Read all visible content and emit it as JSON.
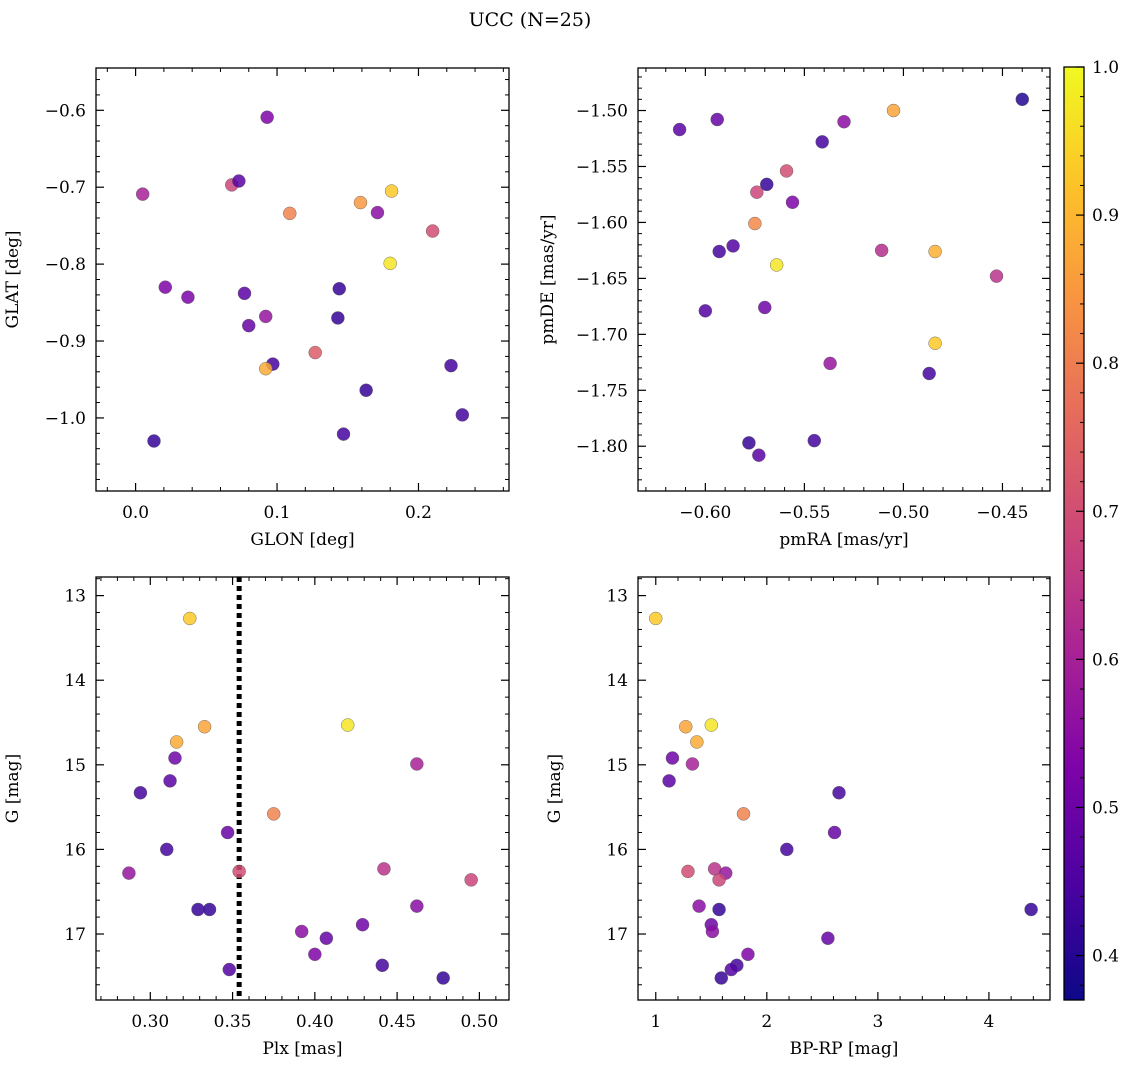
{
  "suptitle": "UCC (N=25)",
  "colorbar": {
    "colormap": "plasma",
    "min": 0.37,
    "max": 1.0,
    "ticks": [
      0.4,
      0.5,
      0.6,
      0.7,
      0.8,
      0.9,
      1.0
    ],
    "tick_labels": [
      "0.4",
      "0.5",
      "0.6",
      "0.7",
      "0.8",
      "0.9",
      "1.0"
    ]
  },
  "chart_data": [
    {
      "type": "scatter",
      "id": "glon-glat",
      "xlabel": "GLON [deg]",
      "ylabel": "GLAT [deg]",
      "xlim": [
        -0.028,
        0.264
      ],
      "ylim": [
        -1.095,
        -0.545
      ],
      "xticks": [
        0.0,
        0.1,
        0.2
      ],
      "xtick_labels": [
        "0.0",
        "0.1",
        "0.2"
      ],
      "yticks": [
        -0.6,
        -0.7,
        -0.8,
        -0.9,
        -1.0
      ],
      "ytick_labels": [
        "−0.6",
        "−0.7",
        "−0.8",
        "−0.9",
        "−1.0"
      ],
      "y_inverted": false,
      "points": [
        {
          "x": 0.005,
          "y": -0.709,
          "c": 0.6
        },
        {
          "x": 0.013,
          "y": -1.03,
          "c": 0.42
        },
        {
          "x": 0.021,
          "y": -0.83,
          "c": 0.53
        },
        {
          "x": 0.037,
          "y": -0.843,
          "c": 0.52
        },
        {
          "x": 0.068,
          "y": -0.697,
          "c": 0.68
        },
        {
          "x": 0.073,
          "y": -0.692,
          "c": 0.47
        },
        {
          "x": 0.077,
          "y": -0.838,
          "c": 0.47
        },
        {
          "x": 0.08,
          "y": -0.88,
          "c": 0.49
        },
        {
          "x": 0.093,
          "y": -0.609,
          "c": 0.53
        },
        {
          "x": 0.092,
          "y": -0.868,
          "c": 0.57
        },
        {
          "x": 0.097,
          "y": -0.93,
          "c": 0.44
        },
        {
          "x": 0.092,
          "y": -0.936,
          "c": 0.88
        },
        {
          "x": 0.109,
          "y": -0.734,
          "c": 0.81
        },
        {
          "x": 0.127,
          "y": -0.915,
          "c": 0.73
        },
        {
          "x": 0.143,
          "y": -0.87,
          "c": 0.42
        },
        {
          "x": 0.144,
          "y": -0.832,
          "c": 0.42
        },
        {
          "x": 0.147,
          "y": -1.021,
          "c": 0.44
        },
        {
          "x": 0.159,
          "y": -0.72,
          "c": 0.85
        },
        {
          "x": 0.163,
          "y": -0.964,
          "c": 0.42
        },
        {
          "x": 0.171,
          "y": -0.733,
          "c": 0.55
        },
        {
          "x": 0.181,
          "y": -0.705,
          "c": 0.93
        },
        {
          "x": 0.18,
          "y": -0.799,
          "c": 0.97
        },
        {
          "x": 0.21,
          "y": -0.757,
          "c": 0.7
        },
        {
          "x": 0.223,
          "y": -0.932,
          "c": 0.44
        },
        {
          "x": 0.231,
          "y": -0.996,
          "c": 0.44
        }
      ]
    },
    {
      "type": "scatter",
      "id": "pmra-pmde",
      "xlabel": "pmRA [mas/yr]",
      "ylabel": "pmDE [mas/yr]",
      "xlim": [
        -0.634,
        -0.426
      ],
      "ylim": [
        -1.84,
        -1.462
      ],
      "xticks": [
        -0.6,
        -0.55,
        -0.5,
        -0.45
      ],
      "xtick_labels": [
        "−0.60",
        "−0.55",
        "−0.50",
        "−0.45"
      ],
      "yticks": [
        -1.5,
        -1.55,
        -1.6,
        -1.65,
        -1.7,
        -1.75,
        -1.8
      ],
      "ytick_labels": [
        "−1.50",
        "−1.55",
        "−1.60",
        "−1.65",
        "−1.70",
        "−1.75",
        "−1.80"
      ],
      "y_inverted": false,
      "points": [
        {
          "x": -0.613,
          "y": -1.517,
          "c": 0.47
        },
        {
          "x": -0.594,
          "y": -1.508,
          "c": 0.49
        },
        {
          "x": -0.6,
          "y": -1.679,
          "c": 0.46
        },
        {
          "x": -0.593,
          "y": -1.626,
          "c": 0.44
        },
        {
          "x": -0.586,
          "y": -1.621,
          "c": 0.46
        },
        {
          "x": -0.578,
          "y": -1.797,
          "c": 0.42
        },
        {
          "x": -0.575,
          "y": -1.601,
          "c": 0.82
        },
        {
          "x": -0.574,
          "y": -1.573,
          "c": 0.68
        },
        {
          "x": -0.573,
          "y": -1.808,
          "c": 0.47
        },
        {
          "x": -0.569,
          "y": -1.566,
          "c": 0.42
        },
        {
          "x": -0.57,
          "y": -1.676,
          "c": 0.5
        },
        {
          "x": -0.564,
          "y": -1.638,
          "c": 0.97
        },
        {
          "x": -0.559,
          "y": -1.554,
          "c": 0.7
        },
        {
          "x": -0.556,
          "y": -1.582,
          "c": 0.53
        },
        {
          "x": -0.545,
          "y": -1.795,
          "c": 0.44
        },
        {
          "x": -0.541,
          "y": -1.528,
          "c": 0.44
        },
        {
          "x": -0.537,
          "y": -1.726,
          "c": 0.57
        },
        {
          "x": -0.53,
          "y": -1.51,
          "c": 0.55
        },
        {
          "x": -0.511,
          "y": -1.625,
          "c": 0.63
        },
        {
          "x": -0.505,
          "y": -1.5,
          "c": 0.87
        },
        {
          "x": -0.487,
          "y": -1.735,
          "c": 0.44
        },
        {
          "x": -0.484,
          "y": -1.626,
          "c": 0.89
        },
        {
          "x": -0.484,
          "y": -1.708,
          "c": 0.93
        },
        {
          "x": -0.453,
          "y": -1.648,
          "c": 0.64
        },
        {
          "x": -0.44,
          "y": -1.49,
          "c": 0.4
        }
      ]
    },
    {
      "type": "scatter",
      "id": "plx-g",
      "xlabel": "Plx [mas]",
      "ylabel": "G [mag]",
      "xlim": [
        0.267,
        0.518
      ],
      "ylim": [
        12.78,
        17.78
      ],
      "xticks": [
        0.3,
        0.35,
        0.4,
        0.45,
        0.5
      ],
      "xtick_labels": [
        "0.30",
        "0.35",
        "0.40",
        "0.45",
        "0.50"
      ],
      "yticks": [
        13,
        14,
        15,
        16,
        17
      ],
      "ytick_labels": [
        "13",
        "14",
        "15",
        "16",
        "17"
      ],
      "y_inverted": true,
      "vline": {
        "x": 0.354,
        "style": "dotted"
      },
      "points": [
        {
          "x": 0.324,
          "y": 13.27,
          "c": 0.93
        },
        {
          "x": 0.333,
          "y": 14.55,
          "c": 0.87
        },
        {
          "x": 0.316,
          "y": 14.73,
          "c": 0.88
        },
        {
          "x": 0.315,
          "y": 14.92,
          "c": 0.5
        },
        {
          "x": 0.312,
          "y": 15.19,
          "c": 0.47
        },
        {
          "x": 0.294,
          "y": 15.33,
          "c": 0.44
        },
        {
          "x": 0.31,
          "y": 16.0,
          "c": 0.44
        },
        {
          "x": 0.287,
          "y": 16.28,
          "c": 0.57
        },
        {
          "x": 0.347,
          "y": 15.8,
          "c": 0.49
        },
        {
          "x": 0.354,
          "y": 16.26,
          "c": 0.7
        },
        {
          "x": 0.329,
          "y": 16.71,
          "c": 0.42
        },
        {
          "x": 0.336,
          "y": 16.71,
          "c": 0.42
        },
        {
          "x": 0.348,
          "y": 17.42,
          "c": 0.46
        },
        {
          "x": 0.375,
          "y": 15.58,
          "c": 0.81
        },
        {
          "x": 0.42,
          "y": 14.53,
          "c": 0.97
        },
        {
          "x": 0.392,
          "y": 16.97,
          "c": 0.55
        },
        {
          "x": 0.4,
          "y": 17.24,
          "c": 0.53
        },
        {
          "x": 0.407,
          "y": 17.05,
          "c": 0.49
        },
        {
          "x": 0.429,
          "y": 16.89,
          "c": 0.5
        },
        {
          "x": 0.442,
          "y": 16.23,
          "c": 0.64
        },
        {
          "x": 0.441,
          "y": 17.37,
          "c": 0.44
        },
        {
          "x": 0.462,
          "y": 14.99,
          "c": 0.6
        },
        {
          "x": 0.462,
          "y": 16.67,
          "c": 0.55
        },
        {
          "x": 0.478,
          "y": 17.52,
          "c": 0.42
        },
        {
          "x": 0.495,
          "y": 16.36,
          "c": 0.68
        }
      ]
    },
    {
      "type": "scatter",
      "id": "bprp-g",
      "xlabel": "BP-RP [mag]",
      "ylabel": "G [mag]",
      "xlim": [
        0.84,
        4.55
      ],
      "ylim": [
        12.78,
        17.78
      ],
      "xticks": [
        1,
        2,
        3,
        4
      ],
      "xtick_labels": [
        "1",
        "2",
        "3",
        "4"
      ],
      "yticks": [
        13,
        14,
        15,
        16,
        17
      ],
      "ytick_labels": [
        "13",
        "14",
        "15",
        "16",
        "17"
      ],
      "y_inverted": true,
      "points": [
        {
          "x": 1.0,
          "y": 13.27,
          "c": 0.93
        },
        {
          "x": 1.27,
          "y": 14.55,
          "c": 0.87
        },
        {
          "x": 1.5,
          "y": 14.53,
          "c": 0.97
        },
        {
          "x": 1.37,
          "y": 14.73,
          "c": 0.88
        },
        {
          "x": 1.15,
          "y": 14.92,
          "c": 0.5
        },
        {
          "x": 1.33,
          "y": 14.99,
          "c": 0.6
        },
        {
          "x": 1.12,
          "y": 15.19,
          "c": 0.47
        },
        {
          "x": 2.65,
          "y": 15.33,
          "c": 0.44
        },
        {
          "x": 1.79,
          "y": 15.58,
          "c": 0.81
        },
        {
          "x": 2.61,
          "y": 15.8,
          "c": 0.49
        },
        {
          "x": 2.18,
          "y": 16.0,
          "c": 0.44
        },
        {
          "x": 1.29,
          "y": 16.26,
          "c": 0.7
        },
        {
          "x": 1.53,
          "y": 16.23,
          "c": 0.64
        },
        {
          "x": 1.63,
          "y": 16.28,
          "c": 0.57
        },
        {
          "x": 1.57,
          "y": 16.36,
          "c": 0.68
        },
        {
          "x": 1.39,
          "y": 16.67,
          "c": 0.55
        },
        {
          "x": 1.57,
          "y": 16.71,
          "c": 0.42
        },
        {
          "x": 4.38,
          "y": 16.71,
          "c": 0.42
        },
        {
          "x": 1.5,
          "y": 16.89,
          "c": 0.5
        },
        {
          "x": 1.51,
          "y": 16.97,
          "c": 0.55
        },
        {
          "x": 2.55,
          "y": 17.05,
          "c": 0.49
        },
        {
          "x": 1.83,
          "y": 17.24,
          "c": 0.53
        },
        {
          "x": 1.73,
          "y": 17.37,
          "c": 0.44
        },
        {
          "x": 1.68,
          "y": 17.42,
          "c": 0.46
        },
        {
          "x": 1.59,
          "y": 17.52,
          "c": 0.42
        }
      ]
    }
  ]
}
